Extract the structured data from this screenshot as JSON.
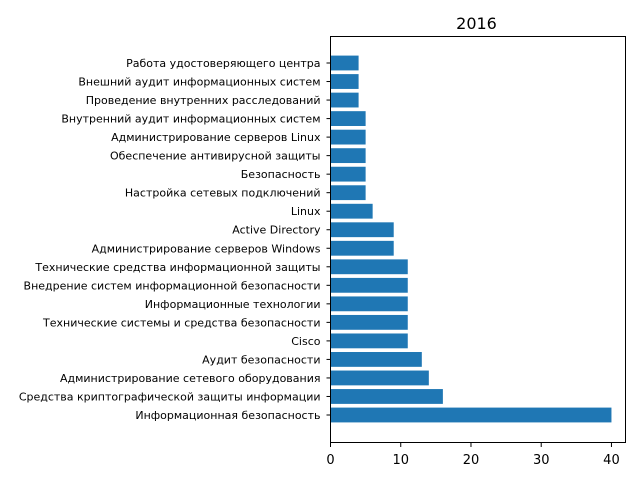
{
  "chart_data": {
    "type": "bar",
    "orientation": "horizontal",
    "title": "2016",
    "xlabel": "",
    "ylabel": "",
    "xlim": [
      0,
      42
    ],
    "xticks": [
      0,
      10,
      20,
      30,
      40
    ],
    "grid": false,
    "bar_color": "#1f77b4",
    "categories": [
      "Информационная безопасность",
      "Средства криптографической защиты информации",
      "Администрирование сетевого оборудования",
      "Аудит безопасности",
      "Cisco",
      "Технические системы и средства безопасности",
      "Информационные технологии",
      "Внедрение систем информационной безопасности",
      "Технические средства информационной защиты",
      "Администрирование серверов Windows",
      "Active Directory",
      "Linux",
      "Настройка сетевых подключений",
      "Безопасность",
      "Обеспечение антивирусной защиты",
      "Администрирование серверов Linux",
      "Внутренний аудит информационных систем",
      "Проведение внутренних расследований",
      "Внешний аудит информационных систем",
      "Работа удостоверяющего центра"
    ],
    "values": [
      40,
      16,
      14,
      13,
      11,
      11,
      11,
      11,
      11,
      9,
      9,
      6,
      5,
      5,
      5,
      5,
      5,
      4,
      4,
      4
    ]
  }
}
